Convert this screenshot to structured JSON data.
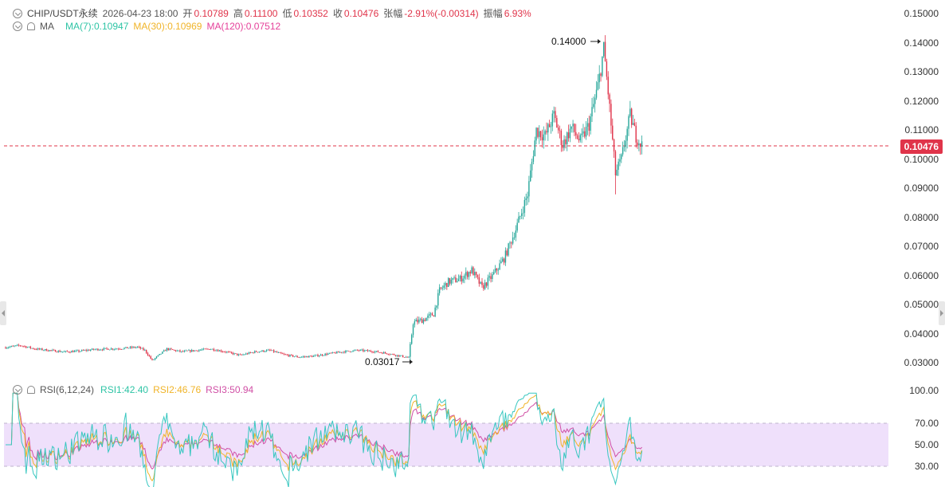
{
  "header": {
    "symbol": "CHIP/USDT永续",
    "datetime": "2026-04-23 18:00",
    "open_label": "开",
    "open": "0.10789",
    "high_label": "高",
    "high": "0.11100",
    "low_label": "低",
    "low": "0.10352",
    "close_label": "收",
    "close": "0.10476",
    "change_label": "张幅",
    "change": "-2.91%(-0.00314)",
    "amplitude_label": "振幅",
    "amplitude": "6.93%"
  },
  "ma_legend": {
    "name": "MA",
    "ma7": "MA(7):0.10947",
    "ma30": "MA(30):0.10969",
    "ma120": "MA(120):0.07512"
  },
  "rsi_legend": {
    "name": "RSI(6,12,24)",
    "rsi1": "RSI1:42.40",
    "rsi2": "RSI2:46.76",
    "rsi3": "RSI3:50.94"
  },
  "colors": {
    "up": "#26a69a",
    "down": "#e0344a",
    "ma7": "#2ec4a5",
    "ma30": "#f0b429",
    "ma120": "#e5409a",
    "rsi1": "#38c7c0",
    "rsi2": "#f0b429",
    "rsi3": "#d04fa5",
    "rsi_band": "#efe0fb"
  },
  "price_axis": {
    "ticks": [
      "0.15000",
      "0.14000",
      "0.13000",
      "0.12000",
      "0.11000",
      "0.10000",
      "0.09000",
      "0.08000",
      "0.07000",
      "0.06000",
      "0.05000",
      "0.04000",
      "0.03000"
    ],
    "current_price": "0.10476"
  },
  "rsi_axis": {
    "ticks": [
      "100.00",
      "70.00",
      "50.00",
      "30.00"
    ]
  },
  "annotations": {
    "high_mark": "0.14000",
    "low_mark": "0.03017"
  },
  "chart_data": {
    "type": "candlestick",
    "price_range": [
      0.0277,
      0.153
    ],
    "rsi_range": [
      0,
      100
    ],
    "rsi_band": [
      30,
      70
    ],
    "grid": false,
    "anchors": [
      [
        0,
        0.0355
      ],
      [
        10,
        0.0362
      ],
      [
        20,
        0.035
      ],
      [
        30,
        0.0345
      ],
      [
        40,
        0.034
      ],
      [
        50,
        0.0342
      ],
      [
        60,
        0.0348
      ],
      [
        70,
        0.035
      ],
      [
        80,
        0.0352
      ],
      [
        90,
        0.0356
      ],
      [
        95,
        0.0345
      ],
      [
        100,
        0.031
      ],
      [
        110,
        0.035
      ],
      [
        120,
        0.034
      ],
      [
        130,
        0.0345
      ],
      [
        140,
        0.035
      ],
      [
        150,
        0.034
      ],
      [
        160,
        0.0328
      ],
      [
        170,
        0.034
      ],
      [
        180,
        0.0345
      ],
      [
        190,
        0.033
      ],
      [
        200,
        0.0322
      ],
      [
        210,
        0.0325
      ],
      [
        220,
        0.0333
      ],
      [
        230,
        0.034
      ],
      [
        240,
        0.0345
      ],
      [
        250,
        0.0342
      ],
      [
        260,
        0.0335
      ],
      [
        270,
        0.0325
      ],
      [
        275,
        0.032
      ],
      [
        278,
        0.044
      ],
      [
        285,
        0.045
      ],
      [
        292,
        0.047
      ],
      [
        296,
        0.055
      ],
      [
        302,
        0.058
      ],
      [
        310,
        0.059
      ],
      [
        318,
        0.062
      ],
      [
        325,
        0.056
      ],
      [
        332,
        0.06
      ],
      [
        340,
        0.066
      ],
      [
        348,
        0.076
      ],
      [
        356,
        0.088
      ],
      [
        362,
        0.11
      ],
      [
        368,
        0.108
      ],
      [
        374,
        0.115
      ],
      [
        380,
        0.105
      ],
      [
        386,
        0.111
      ],
      [
        392,
        0.106
      ],
      [
        398,
        0.112
      ],
      [
        404,
        0.125
      ],
      [
        408,
        0.138
      ],
      [
        411,
        0.123
      ],
      [
        416,
        0.095
      ],
      [
        420,
        0.1
      ],
      [
        426,
        0.115
      ],
      [
        430,
        0.108
      ],
      [
        434,
        0.1048
      ]
    ]
  }
}
